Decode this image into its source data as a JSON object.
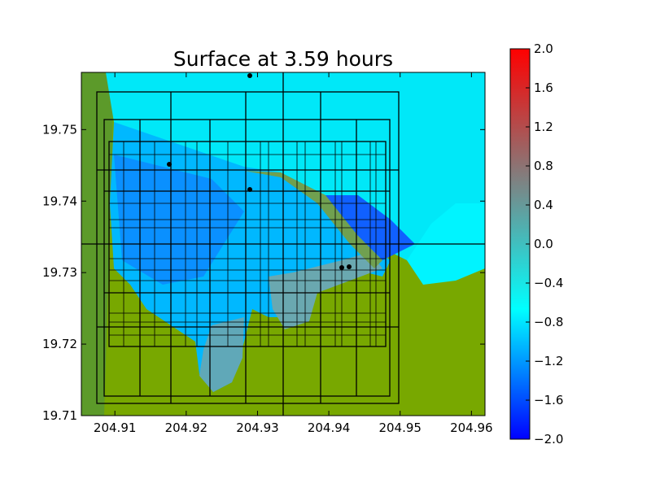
{
  "chart_data": {
    "type": "image",
    "title": "Surface at 3.59 hours",
    "xlim": [
      204.9053,
      204.9619
    ],
    "ylim": [
      19.71,
      19.758
    ],
    "xticks": [
      204.91,
      204.92,
      204.93,
      204.94,
      204.95,
      204.96
    ],
    "yticks": [
      19.71,
      19.72,
      19.73,
      19.74,
      19.75
    ],
    "colorbar": {
      "clim": [
        -2.0,
        2.0
      ],
      "colormap": [
        "#0000ff",
        "#00ffff",
        "#808080",
        "#ff0000"
      ],
      "ticks": [
        {
          "value": 2.0,
          "label": "2.0"
        },
        {
          "value": 1.6,
          "label": "1.6"
        },
        {
          "value": 1.2,
          "label": "1.2"
        },
        {
          "value": 0.8,
          "label": "0.8"
        },
        {
          "value": 0.4,
          "label": "0.4"
        },
        {
          "value": 0.0,
          "label": "0.0"
        },
        {
          "value": -0.4,
          "label": "−0.4"
        },
        {
          "value": -0.8,
          "label": "−0.8"
        },
        {
          "value": -1.2,
          "label": "−1.2"
        },
        {
          "value": -1.6,
          "label": "−1.6"
        },
        {
          "value": -2.0,
          "label": "−2.0"
        }
      ]
    }
  }
}
